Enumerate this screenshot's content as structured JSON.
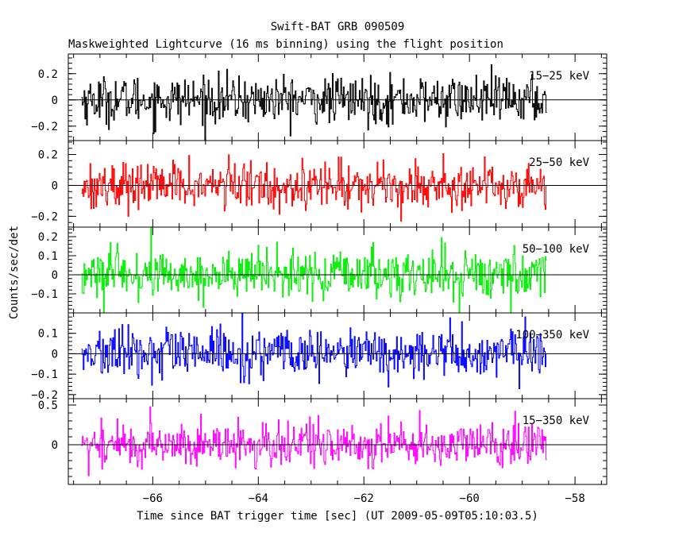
{
  "chart_data": {
    "type": "line",
    "title": "Swift-BAT GRB 090509",
    "subtitle": "Maskweighted Lightcurve (16 ms binning) using the flight position",
    "xlabel": "Time since BAT trigger time [sec] (UT 2009-05-09T05:10:03.5)",
    "ylabel": "Counts/sec/det",
    "xlim": [
      -67.6,
      -57.4
    ],
    "xticks": [
      -66,
      -64,
      -62,
      -60,
      -58
    ],
    "xtick_labels": [
      "−66",
      "−64",
      "−62",
      "−60",
      "−58"
    ],
    "x_start": -67.35,
    "x_end": -58.55,
    "bin_width": 0.016,
    "panels": [
      {
        "name": "15−25 keV",
        "color": "#000000",
        "ylim": [
          -0.31,
          0.35
        ],
        "yticks": [
          -0.2,
          0,
          0.2
        ],
        "ytick_labels": [
          "−0.2",
          "0",
          "0.2"
        ],
        "mean": 0.0,
        "noise_sigma": 0.09
      },
      {
        "name": "25−50 keV",
        "color": "#ff0000",
        "ylim": [
          -0.27,
          0.29
        ],
        "yticks": [
          -0.2,
          0,
          0.2
        ],
        "ytick_labels": [
          "−0.2",
          "0",
          "0.2"
        ],
        "mean": 0.0,
        "noise_sigma": 0.075
      },
      {
        "name": "50−100 keV",
        "color": "#00ee00",
        "ylim": [
          -0.2,
          0.25
        ],
        "yticks": [
          -0.1,
          0,
          0.1,
          0.2
        ],
        "ytick_labels": [
          "−0.1",
          "0",
          "0.1",
          "0.2"
        ],
        "mean": 0.0,
        "noise_sigma": 0.065
      },
      {
        "name": "100−350 keV",
        "color": "#0000ff",
        "ylim": [
          -0.22,
          0.2
        ],
        "yticks": [
          -0.2,
          -0.1,
          0,
          0.1
        ],
        "ytick_labels": [
          "−0.2",
          "−0.1",
          "0",
          "0.1"
        ],
        "mean": 0.0,
        "noise_sigma": 0.06
      },
      {
        "name": "15−350 keV",
        "color": "#ff00ff",
        "ylim": [
          -0.5,
          0.58
        ],
        "yticks": [
          0,
          0.5
        ],
        "ytick_labels": [
          "0",
          "0.5"
        ],
        "mean": 0.0,
        "noise_sigma": 0.14
      }
    ],
    "grid": false,
    "legend": "none"
  }
}
